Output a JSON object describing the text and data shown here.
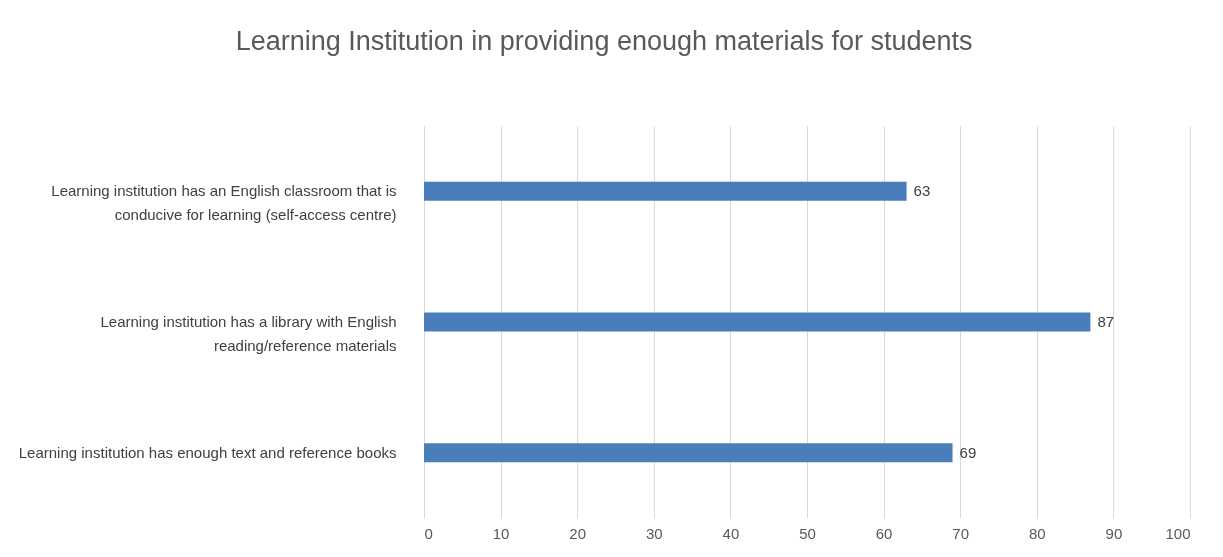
{
  "chart_data": {
    "type": "bar",
    "orientation": "horizontal",
    "title": "Learning Institution in providing enough materials for students",
    "categories": [
      "Learning institution has an English classroom that is conducive for learning (self-access centre)",
      "Learning institution has a library with English reading/reference materials",
      "Learning institution has enough text and reference books"
    ],
    "values": [
      63,
      87,
      69
    ],
    "color": "#4a7ebb",
    "xlim": [
      0,
      100
    ],
    "xticks": [
      0,
      10,
      20,
      30,
      40,
      50,
      60,
      70,
      80,
      90,
      100
    ],
    "grid": "x",
    "data_labels": true
  }
}
